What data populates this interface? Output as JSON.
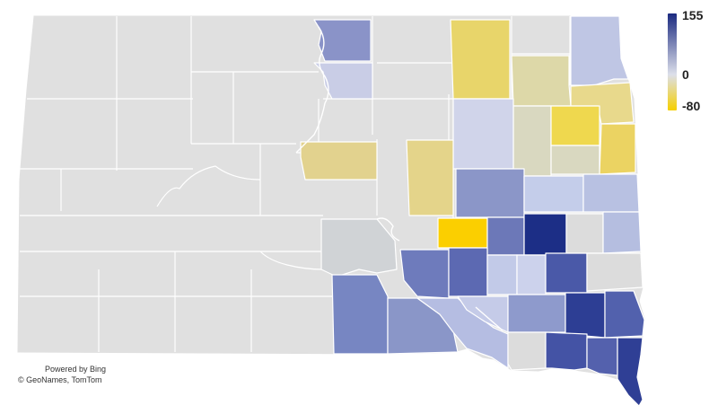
{
  "legend": {
    "max_label": "155",
    "mid_label": "0",
    "min_label": "-80",
    "colors": {
      "high": "#1b2a80",
      "mid": "#dcdfea",
      "low": "#f6d000"
    }
  },
  "attribution": {
    "line1": "Powered by Bing",
    "line2": "© GeoNames, TomTom"
  },
  "map_colors": {
    "background_state": "#e0e0e0",
    "county_border": "#ffffff"
  }
}
